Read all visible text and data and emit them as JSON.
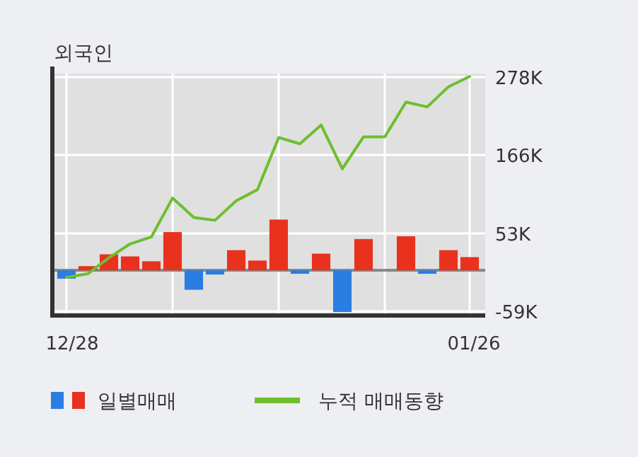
{
  "chart_data": {
    "type": "bar",
    "title": "외국인",
    "categories": [
      "12/28",
      null,
      null,
      null,
      null,
      null,
      null,
      null,
      null,
      null,
      null,
      null,
      null,
      null,
      null,
      null,
      null,
      null,
      null,
      "01/26"
    ],
    "series": [
      {
        "name": "일별매매",
        "colors": [
          "#2a7de1",
          "#e8321e",
          "#e8321e",
          "#e8321e",
          "#e8321e",
          "#e8321e",
          "#2a7de1",
          "#2a7de1",
          "#e8321e",
          "#e8321e",
          "#e8321e",
          "#2a7de1",
          "#e8321e",
          "#2a7de1",
          "#e8321e",
          "#e8321e",
          "#e8321e",
          "#2a7de1",
          "#e8321e",
          "#e8321e"
        ],
        "values": [
          -12,
          6,
          23,
          20,
          13,
          55,
          -28,
          -6,
          29,
          14,
          73,
          -5,
          24,
          -60,
          45,
          0,
          49,
          -5,
          29,
          19
        ]
      },
      {
        "type": "line",
        "name": "누적 매매동향",
        "color": "#6cbf2e",
        "values": [
          -10,
          -5,
          18,
          38,
          48,
          104,
          76,
          72,
          100,
          116,
          191,
          182,
          209,
          146,
          192,
          192,
          242,
          235,
          264,
          279
        ]
      }
    ],
    "ylim": [
      -65,
      283
    ],
    "yticks": [
      {
        "value": 278,
        "label": "278K"
      },
      {
        "value": 166,
        "label": "166K"
      },
      {
        "value": 53,
        "label": "53K"
      },
      {
        "value": -59,
        "label": "-59K"
      }
    ],
    "grid": true,
    "legend": "bottom"
  }
}
